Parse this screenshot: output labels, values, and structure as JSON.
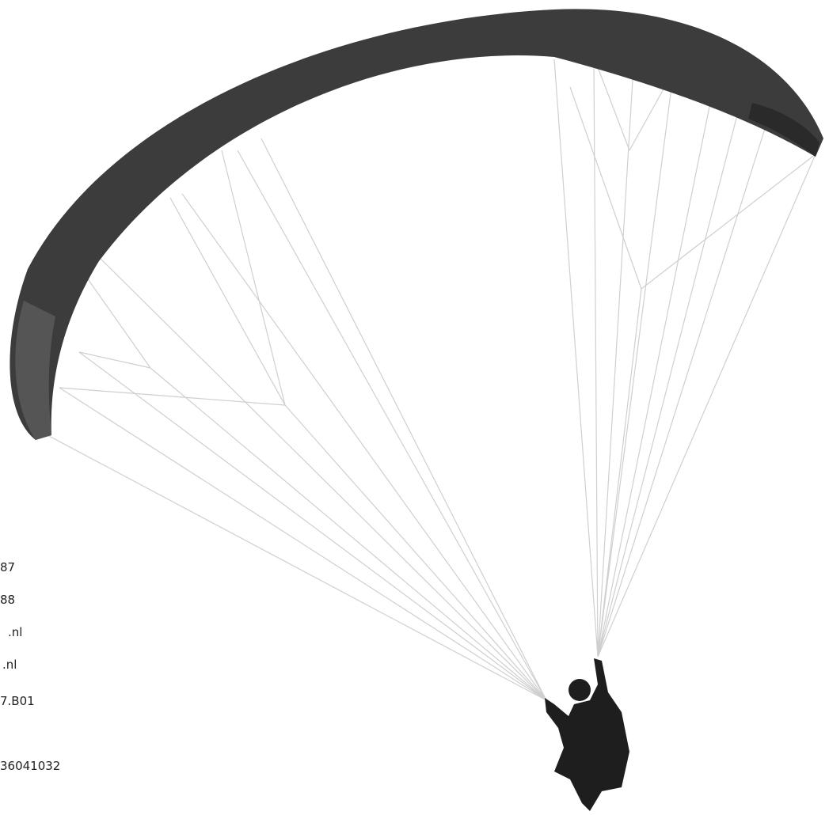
{
  "contact_lines": [
    "87",
    "88",
    ".nl",
    ".nl",
    "7.B01",
    "36041032"
  ]
}
